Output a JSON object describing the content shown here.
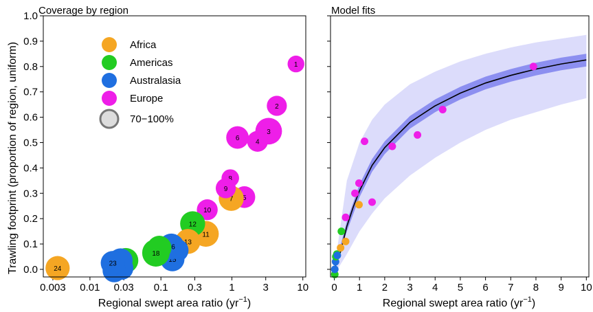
{
  "chart_data": [
    {
      "type": "scatter",
      "title": "Coverage by region",
      "xlabel": "Regional swept area ratio (yr",
      "xlabel_sup": "−1",
      "xlabel_end": ")",
      "ylabel": "Trawling footprint (proportion of region, uniform)",
      "x_scale": "log",
      "xlim": [
        0.0022,
        11
      ],
      "ylim": [
        -0.03,
        1.0
      ],
      "x_ticks": [
        {
          "value": 0.003,
          "label": "0.003"
        },
        {
          "value": 0.01,
          "label": "0.01"
        },
        {
          "value": 0.03,
          "label": "0.03"
        },
        {
          "value": 0.1,
          "label": "0.1"
        },
        {
          "value": 0.3,
          "label": "0.3"
        },
        {
          "value": 1,
          "label": "1"
        },
        {
          "value": 3,
          "label": "3"
        },
        {
          "value": 10,
          "label": "10"
        }
      ],
      "y_ticks": [
        {
          "value": 0.0,
          "label": "0.0"
        },
        {
          "value": 0.1,
          "label": "0.1"
        },
        {
          "value": 0.2,
          "label": "0.2"
        },
        {
          "value": 0.3,
          "label": "0.3"
        },
        {
          "value": 0.4,
          "label": "0.4"
        },
        {
          "value": 0.5,
          "label": "0.5"
        },
        {
          "value": 0.6,
          "label": "0.6"
        },
        {
          "value": 0.7,
          "label": "0.7"
        },
        {
          "value": 0.8,
          "label": "0.8"
        },
        {
          "value": 0.9,
          "label": "0.9"
        },
        {
          "value": 1.0,
          "label": "1.0"
        }
      ],
      "legend_position": "top-left",
      "legend": [
        {
          "name": "Africa",
          "color": "#f5a623"
        },
        {
          "name": "Americas",
          "color": "#22cc22"
        },
        {
          "name": "Australasia",
          "color": "#1f6fe0"
        },
        {
          "name": "Europe",
          "color": "#ee1ee8"
        }
      ],
      "size_legend": {
        "label": "70−100%",
        "color": "#dddddd"
      },
      "points": [
        {
          "id": "1",
          "x": 8.0,
          "y": 0.81,
          "region": "Europe",
          "size": 0.35
        },
        {
          "id": "2",
          "x": 4.3,
          "y": 0.645,
          "region": "Europe",
          "size": 0.55
        },
        {
          "id": "3",
          "x": 3.3,
          "y": 0.545,
          "region": "Europe",
          "size": 0.95
        },
        {
          "id": "4",
          "x": 2.3,
          "y": 0.505,
          "region": "Europe",
          "size": 0.6
        },
        {
          "id": "5",
          "x": 1.5,
          "y": 0.285,
          "region": "Europe",
          "size": 0.65
        },
        {
          "id": "6",
          "x": 1.2,
          "y": 0.52,
          "region": "Europe",
          "size": 0.7
        },
        {
          "id": "7",
          "x": 0.98,
          "y": 0.28,
          "region": "Africa",
          "size": 0.85
        },
        {
          "id": "8",
          "x": 0.95,
          "y": 0.36,
          "region": "Europe",
          "size": 0.4
        },
        {
          "id": "9",
          "x": 0.82,
          "y": 0.32,
          "region": "Europe",
          "size": 0.55
        },
        {
          "id": "10",
          "x": 0.45,
          "y": 0.235,
          "region": "Europe",
          "size": 0.6
        },
        {
          "id": "11",
          "x": 0.43,
          "y": 0.14,
          "region": "Africa",
          "size": 0.9
        },
        {
          "id": "12",
          "x": 0.28,
          "y": 0.18,
          "region": "Americas",
          "size": 0.85
        },
        {
          "id": "13",
          "x": 0.24,
          "y": 0.11,
          "region": "Africa",
          "size": 0.85
        },
        {
          "id": "14",
          "x": 0.17,
          "y": 0.075,
          "region": "Australasia",
          "size": 0.7
        },
        {
          "id": "15",
          "x": 0.145,
          "y": 0.04,
          "region": "Australasia",
          "size": 0.8
        },
        {
          "id": "16",
          "x": 0.14,
          "y": 0.09,
          "region": "Australasia",
          "size": 0.9
        },
        {
          "id": "17",
          "x": 0.095,
          "y": 0.085,
          "region": "Americas",
          "size": 0.8
        },
        {
          "id": "18",
          "x": 0.085,
          "y": 0.065,
          "region": "Americas",
          "size": 1.0
        },
        {
          "id": "19",
          "x": 0.032,
          "y": 0.035,
          "region": "Americas",
          "size": 0.85
        },
        {
          "id": "20",
          "x": 0.028,
          "y": 0.005,
          "region": "Australasia",
          "size": 0.75
        },
        {
          "id": "21",
          "x": 0.027,
          "y": 0.035,
          "region": "Australasia",
          "size": 0.8
        },
        {
          "id": "22",
          "x": 0.022,
          "y": -0.005,
          "region": "Australasia",
          "size": 0.75
        },
        {
          "id": "23",
          "x": 0.021,
          "y": 0.025,
          "region": "Australasia",
          "size": 0.8
        },
        {
          "id": "24",
          "x": 0.0035,
          "y": 0.005,
          "region": "Africa",
          "size": 0.8
        }
      ]
    },
    {
      "type": "scatter",
      "title": "Model fits",
      "xlabel": "Regional swept area ratio (yr",
      "xlabel_sup": "−1",
      "xlabel_end": ")",
      "x_scale": "linear",
      "xlim": [
        -0.15,
        10.1
      ],
      "ylim": [
        -0.03,
        1.0
      ],
      "x_ticks": [
        {
          "value": 0,
          "label": "0"
        },
        {
          "value": 1,
          "label": "1"
        },
        {
          "value": 2,
          "label": "2"
        },
        {
          "value": 3,
          "label": "3"
        },
        {
          "value": 4,
          "label": "4"
        },
        {
          "value": 5,
          "label": "5"
        },
        {
          "value": 6,
          "label": "6"
        },
        {
          "value": 7,
          "label": "7"
        },
        {
          "value": 8,
          "label": "8"
        },
        {
          "value": 9,
          "label": "9"
        },
        {
          "value": 10,
          "label": "10"
        }
      ],
      "y_ticks": [
        0.0,
        0.1,
        0.2,
        0.3,
        0.4,
        0.5,
        0.6,
        0.7,
        0.8,
        0.9,
        1.0
      ],
      "fit_curve": {
        "color": "#000000",
        "x": [
          0,
          0.25,
          0.5,
          0.75,
          1,
          1.5,
          2,
          3,
          4,
          5,
          6,
          7,
          8,
          9,
          10
        ],
        "y": [
          0,
          0.07,
          0.17,
          0.245,
          0.31,
          0.41,
          0.48,
          0.58,
          0.645,
          0.695,
          0.735,
          0.765,
          0.79,
          0.81,
          0.826
        ]
      },
      "inner_band": {
        "color": "#8c8ff0",
        "x": [
          0,
          0.5,
          1,
          1.5,
          2,
          3,
          4,
          5,
          6,
          7,
          8,
          9,
          10
        ],
        "lower": [
          0,
          0.15,
          0.285,
          0.385,
          0.455,
          0.555,
          0.62,
          0.67,
          0.71,
          0.74,
          0.765,
          0.785,
          0.8
        ],
        "upper": [
          0,
          0.19,
          0.335,
          0.435,
          0.505,
          0.605,
          0.67,
          0.72,
          0.76,
          0.79,
          0.815,
          0.835,
          0.85
        ]
      },
      "outer_band": {
        "color": "#dcdcfb",
        "x": [
          0,
          0.5,
          1,
          1.5,
          2,
          3,
          4,
          5,
          6,
          7,
          8,
          9,
          10
        ],
        "lower": [
          -0.02,
          0.06,
          0.15,
          0.22,
          0.28,
          0.37,
          0.44,
          0.5,
          0.55,
          0.59,
          0.62,
          0.65,
          0.675
        ],
        "upper": [
          0,
          0.35,
          0.5,
          0.59,
          0.65,
          0.73,
          0.78,
          0.82,
          0.85,
          0.875,
          0.895,
          0.91,
          0.925
        ]
      },
      "points": [
        {
          "x": 0.02,
          "y": -0.02,
          "region": "Americas"
        },
        {
          "x": 0.02,
          "y": 0.0,
          "region": "Australasia"
        },
        {
          "x": 0.05,
          "y": 0.03,
          "region": "Australasia"
        },
        {
          "x": 0.06,
          "y": 0.05,
          "region": "Americas"
        },
        {
          "x": 0.1,
          "y": 0.06,
          "region": "Americas"
        },
        {
          "x": 0.12,
          "y": 0.055,
          "region": "Australasia"
        },
        {
          "x": 0.25,
          "y": 0.085,
          "region": "Africa"
        },
        {
          "x": 0.28,
          "y": 0.15,
          "region": "Americas"
        },
        {
          "x": 0.45,
          "y": 0.11,
          "region": "Africa"
        },
        {
          "x": 0.45,
          "y": 0.205,
          "region": "Europe"
        },
        {
          "x": 0.82,
          "y": 0.3,
          "region": "Europe"
        },
        {
          "x": 0.98,
          "y": 0.255,
          "region": "Africa"
        },
        {
          "x": 0.98,
          "y": 0.34,
          "region": "Europe"
        },
        {
          "x": 1.2,
          "y": 0.505,
          "region": "Europe"
        },
        {
          "x": 1.5,
          "y": 0.265,
          "region": "Europe"
        },
        {
          "x": 2.3,
          "y": 0.485,
          "region": "Europe"
        },
        {
          "x": 3.3,
          "y": 0.53,
          "region": "Europe"
        },
        {
          "x": 4.3,
          "y": 0.63,
          "region": "Europe"
        },
        {
          "x": 7.9,
          "y": 0.8,
          "region": "Europe"
        }
      ]
    }
  ]
}
